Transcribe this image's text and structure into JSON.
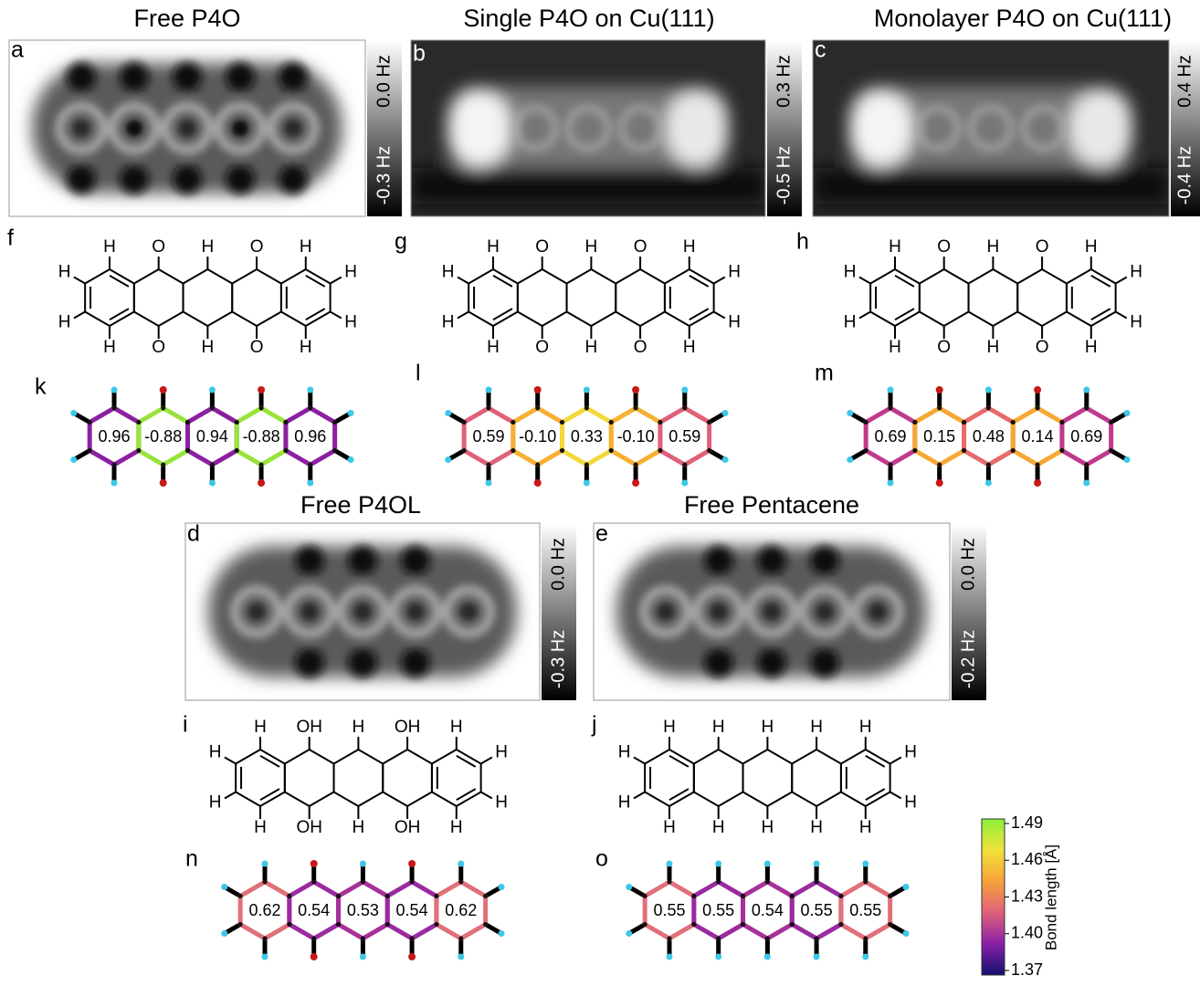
{
  "panels": [
    {
      "letter": "a",
      "title": "Free P4O",
      "scale_top": "0.0 Hz",
      "scale_bottom": "-0.3 Hz"
    },
    {
      "letter": "b",
      "title": "Single P4O on Cu(111)",
      "scale_top": "0.3 Hz",
      "scale_bottom": "-0.5 Hz"
    },
    {
      "letter": "c",
      "title": "Monolayer P4O on Cu(111)",
      "scale_top": "0.4 Hz",
      "scale_bottom": "-0.4 Hz"
    },
    {
      "letter": "d",
      "title": "Free P4OL",
      "scale_top": "0.0 Hz",
      "scale_bottom": "-0.3 Hz"
    },
    {
      "letter": "e",
      "title": "Free Pentacene",
      "scale_top": "0.0 Hz",
      "scale_bottom": "-0.2 Hz"
    }
  ],
  "structures": [
    {
      "letter": "f",
      "top": [
        "H",
        "O",
        "H",
        "O",
        "H"
      ],
      "bottom": [
        "H",
        "O",
        "H",
        "O",
        "H"
      ],
      "left": [
        "H",
        "H"
      ],
      "right": [
        "H",
        "H"
      ]
    },
    {
      "letter": "g",
      "top": [
        "H",
        "O",
        "H",
        "O",
        "H"
      ],
      "bottom": [
        "H",
        "O",
        "H",
        "O",
        "H"
      ],
      "left": [
        "H",
        "H"
      ],
      "right": [
        "H",
        "H"
      ]
    },
    {
      "letter": "h",
      "top": [
        "H",
        "O",
        "H",
        "O",
        "H"
      ],
      "bottom": [
        "H",
        "O",
        "H",
        "O",
        "H"
      ],
      "left": [
        "H",
        "H"
      ],
      "right": [
        "H",
        "H"
      ]
    },
    {
      "letter": "i",
      "top": [
        "H",
        "OH",
        "H",
        "OH",
        "H"
      ],
      "bottom": [
        "H",
        "OH",
        "H",
        "OH",
        "H"
      ],
      "left": [
        "H",
        "H"
      ],
      "right": [
        "H",
        "H"
      ]
    },
    {
      "letter": "j",
      "top": [
        "H",
        "H",
        "H",
        "H",
        "H"
      ],
      "bottom": [
        "H",
        "H",
        "H",
        "H",
        "H"
      ],
      "left": [
        "H",
        "H"
      ],
      "right": [
        "H",
        "H"
      ]
    }
  ],
  "bond_maps": [
    {
      "letter": "k",
      "rings": [
        "0.96",
        "-0.88",
        "0.94",
        "-0.88",
        "0.96"
      ]
    },
    {
      "letter": "l",
      "rings": [
        "0.59",
        "-0.10",
        "0.33",
        "-0.10",
        "0.59"
      ]
    },
    {
      "letter": "m",
      "rings": [
        "0.69",
        "0.15",
        "0.48",
        "0.14",
        "0.69"
      ]
    },
    {
      "letter": "n",
      "rings": [
        "0.62",
        "0.54",
        "0.53",
        "0.54",
        "0.62"
      ]
    },
    {
      "letter": "o",
      "rings": [
        "0.55",
        "0.55",
        "0.54",
        "0.55",
        "0.55"
      ]
    }
  ],
  "colorbar": {
    "label": "Bond length [Å]",
    "ticks": [
      "1.49",
      "1.46",
      "1.43",
      "1.40",
      "1.37"
    ]
  }
}
